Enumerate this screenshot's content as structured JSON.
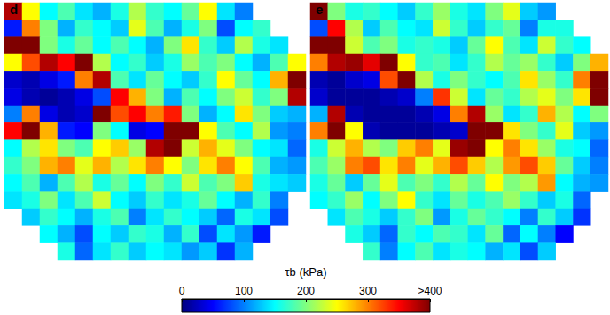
{
  "chart_data": [
    {
      "type": "heatmap",
      "title": "d",
      "tick_labels": false,
      "cells": [
        [
          380,
          250,
          150,
          180,
          140,
          120,
          160,
          220,
          170,
          150,
          190,
          250,
          140,
          100,
          null,
          null,
          null
        ],
        [
          60,
          300,
          200,
          120,
          170,
          150,
          130,
          240,
          180,
          120,
          160,
          200,
          80,
          150,
          170,
          null,
          null
        ],
        [
          400,
          420,
          200,
          160,
          190,
          150,
          180,
          150,
          120,
          200,
          260,
          170,
          130,
          220,
          160,
          140,
          null
        ],
        [
          250,
          320,
          380,
          350,
          420,
          220,
          150,
          170,
          130,
          160,
          210,
          180,
          200,
          150,
          120,
          180,
          250
        ],
        [
          30,
          20,
          40,
          60,
          300,
          380,
          180,
          140,
          190,
          150,
          130,
          170,
          250,
          190,
          150,
          280,
          430
        ],
        [
          40,
          20,
          10,
          20,
          40,
          80,
          350,
          280,
          200,
          120,
          180,
          150,
          200,
          230,
          170,
          200,
          380
        ],
        [
          100,
          300,
          40,
          20,
          30,
          400,
          320,
          350,
          300,
          340,
          200,
          120,
          150,
          260,
          200,
          130,
          120
        ],
        [
          350,
          420,
          280,
          60,
          50,
          200,
          150,
          40,
          50,
          400,
          440,
          250,
          180,
          150,
          220,
          110,
          100
        ],
        [
          150,
          220,
          260,
          200,
          180,
          250,
          270,
          210,
          380,
          430,
          230,
          280,
          240,
          200,
          150,
          140,
          90
        ],
        [
          170,
          200,
          280,
          300,
          240,
          280,
          220,
          260,
          300,
          250,
          200,
          260,
          300,
          250,
          180,
          120,
          110
        ],
        [
          150,
          180,
          120,
          180,
          220,
          160,
          190,
          150,
          200,
          170,
          230,
          180,
          200,
          270,
          160,
          140,
          130
        ],
        [
          140,
          160,
          200,
          140,
          180,
          230,
          150,
          130,
          170,
          140,
          160,
          190,
          150,
          120,
          170,
          100,
          null
        ],
        [
          null,
          130,
          170,
          150,
          120,
          160,
          180,
          100,
          140,
          170,
          150,
          130,
          90,
          160,
          140,
          80,
          null
        ],
        [
          null,
          null,
          150,
          120,
          80,
          150,
          130,
          170,
          160,
          120,
          170,
          80,
          140,
          110,
          60,
          null,
          null
        ],
        [
          null,
          null,
          null,
          160,
          90,
          140,
          170,
          130,
          150,
          140,
          110,
          130,
          70,
          120,
          null,
          null,
          null
        ]
      ]
    },
    {
      "type": "heatmap",
      "title": "e",
      "tick_labels": false,
      "cells": [
        [
          400,
          200,
          160,
          170,
          150,
          130,
          170,
          210,
          160,
          140,
          200,
          240,
          130,
          110,
          null,
          null,
          null
        ],
        [
          80,
          350,
          220,
          130,
          180,
          150,
          140,
          230,
          170,
          130,
          170,
          190,
          100,
          160,
          160,
          null,
          null
        ],
        [
          420,
          400,
          230,
          180,
          200,
          160,
          170,
          160,
          130,
          190,
          250,
          180,
          140,
          230,
          170,
          150,
          null
        ],
        [
          300,
          380,
          390,
          360,
          400,
          250,
          170,
          180,
          140,
          170,
          220,
          190,
          210,
          170,
          130,
          200,
          280
        ],
        [
          20,
          10,
          30,
          40,
          320,
          400,
          220,
          160,
          200,
          170,
          150,
          180,
          260,
          210,
          170,
          300,
          450
        ],
        [
          30,
          10,
          10,
          10,
          20,
          30,
          100,
          330,
          230,
          140,
          190,
          170,
          220,
          240,
          200,
          260,
          450
        ],
        [
          120,
          380,
          20,
          10,
          10,
          10,
          20,
          40,
          300,
          380,
          210,
          140,
          170,
          280,
          220,
          150,
          200
        ],
        [
          300,
          400,
          250,
          20,
          10,
          10,
          10,
          20,
          30,
          420,
          430,
          260,
          200,
          170,
          240,
          130,
          110
        ],
        [
          160,
          230,
          280,
          220,
          200,
          270,
          300,
          240,
          390,
          440,
          250,
          300,
          260,
          210,
          160,
          150,
          90
        ],
        [
          180,
          210,
          300,
          320,
          260,
          300,
          240,
          280,
          320,
          270,
          220,
          290,
          320,
          270,
          190,
          130,
          100
        ],
        [
          160,
          190,
          130,
          190,
          240,
          180,
          200,
          170,
          220,
          190,
          250,
          200,
          220,
          290,
          150,
          120,
          110
        ],
        [
          150,
          170,
          210,
          150,
          200,
          250,
          170,
          140,
          190,
          160,
          180,
          210,
          170,
          130,
          160,
          90,
          null
        ],
        [
          null,
          140,
          180,
          160,
          130,
          170,
          200,
          110,
          160,
          190,
          170,
          150,
          100,
          170,
          130,
          70,
          null
        ],
        [
          null,
          null,
          160,
          130,
          90,
          170,
          150,
          180,
          170,
          140,
          190,
          90,
          150,
          100,
          50,
          null,
          null
        ],
        [
          null,
          null,
          null,
          170,
          100,
          150,
          180,
          140,
          160,
          150,
          120,
          140,
          80,
          130,
          null,
          null,
          null
        ]
      ]
    }
  ],
  "colorbar": {
    "label": "τb (kPa)",
    "range": [
      0,
      400
    ],
    "ticks": [
      0,
      100,
      200,
      300,
      {
        "value": 400,
        "label": ">400"
      }
    ]
  }
}
